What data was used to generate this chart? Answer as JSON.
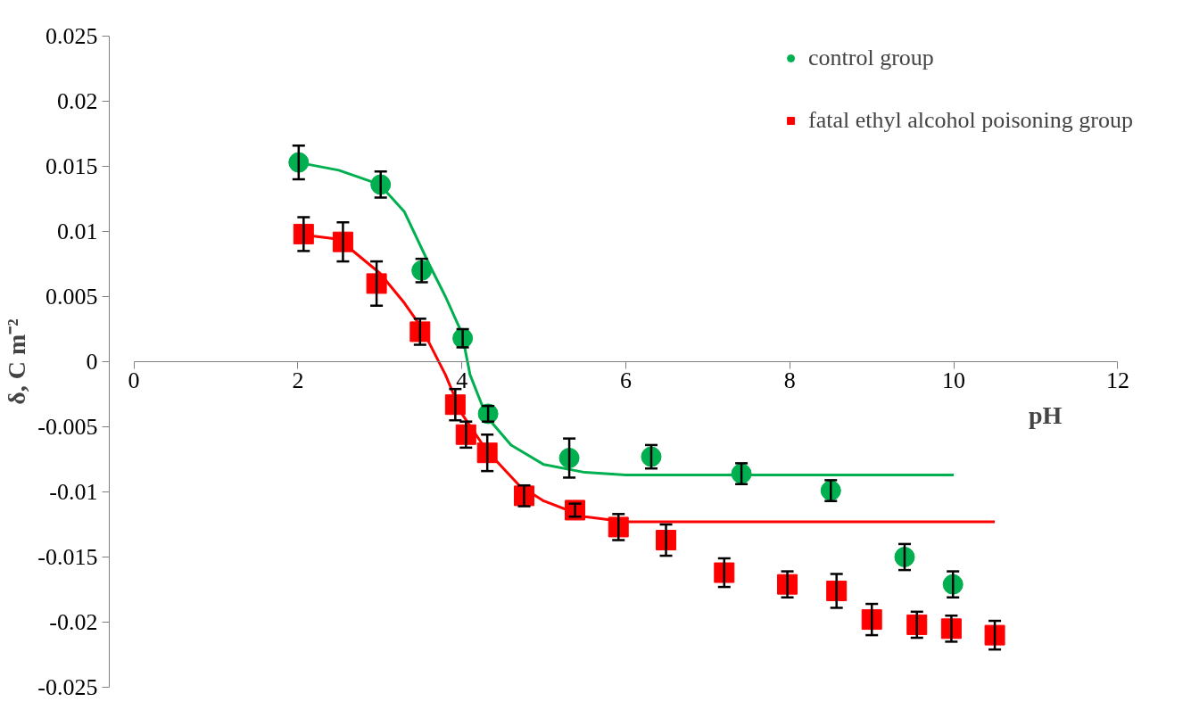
{
  "chart_data": {
    "type": "scatter",
    "xlabel": "pH",
    "ylabel": "δ, C m⁻²",
    "xlim": [
      0,
      12
    ],
    "ylim": [
      -0.025,
      0.025
    ],
    "xticks": [
      0,
      2,
      4,
      6,
      8,
      10,
      12
    ],
    "yticks": [
      -0.025,
      -0.02,
      -0.015,
      -0.01,
      -0.005,
      0,
      0.005,
      0.01,
      0.015,
      0.02,
      0.025
    ],
    "grid": false,
    "legend": "top right",
    "series": [
      {
        "name": "control group",
        "color": "#00b050",
        "marker": "circle",
        "x": [
          2.01,
          3.01,
          3.51,
          4.01,
          4.32,
          5.31,
          6.31,
          7.41,
          8.5,
          9.4,
          9.99
        ],
        "values": [
          0.0153,
          0.0136,
          0.007,
          0.0018,
          -0.004,
          -0.0074,
          -0.0073,
          -0.0086,
          -0.0099,
          -0.015,
          -0.0171
        ],
        "errors": [
          0.0013,
          0.001,
          0.0009,
          0.0007,
          0.0006,
          0.0015,
          0.0009,
          0.0008,
          0.0008,
          0.001,
          0.001
        ]
      },
      {
        "name": "fatal ethyl alcohol poisoning group",
        "color": "#ff0000",
        "marker": "square",
        "x": [
          2.07,
          2.55,
          2.96,
          3.49,
          3.92,
          4.05,
          4.31,
          4.76,
          5.38,
          5.91,
          6.49,
          7.2,
          7.97,
          8.57,
          9.0,
          9.55,
          9.97,
          10.5
        ],
        "values": [
          0.0098,
          0.0092,
          0.006,
          0.0023,
          -0.0033,
          -0.0056,
          -0.007,
          -0.0103,
          -0.0114,
          -0.0127,
          -0.0137,
          -0.0162,
          -0.0171,
          -0.0176,
          -0.0198,
          -0.0202,
          -0.0205,
          -0.021
        ],
        "errors": [
          0.0013,
          0.0015,
          0.0017,
          0.001,
          0.0012,
          0.001,
          0.0014,
          0.0008,
          0.0005,
          0.001,
          0.0012,
          0.0011,
          0.001,
          0.0013,
          0.0012,
          0.001,
          0.001,
          0.0011
        ]
      },
      {
        "type": "line",
        "color": "#00b050",
        "x": [
          2,
          2.5,
          3,
          3.3,
          3.6,
          3.8,
          4.0,
          4.1,
          4.3,
          4.6,
          5,
          5.5,
          6,
          10
        ],
        "values": [
          0.0153,
          0.0147,
          0.0136,
          0.0115,
          0.0075,
          0.005,
          0.0022,
          -0.001,
          -0.0042,
          -0.0064,
          -0.0079,
          -0.0085,
          -0.0087,
          -0.0087
        ]
      },
      {
        "type": "line",
        "color": "#ff0000",
        "x": [
          2,
          2.5,
          3,
          3.3,
          3.5,
          3.8,
          4,
          4.3,
          4.7,
          5,
          5.5,
          6,
          10.5
        ],
        "values": [
          0.0098,
          0.0094,
          0.0068,
          0.0045,
          0.0027,
          -0.001,
          -0.004,
          -0.0068,
          -0.0095,
          -0.0107,
          -0.0119,
          -0.0123,
          -0.0123
        ]
      }
    ]
  }
}
